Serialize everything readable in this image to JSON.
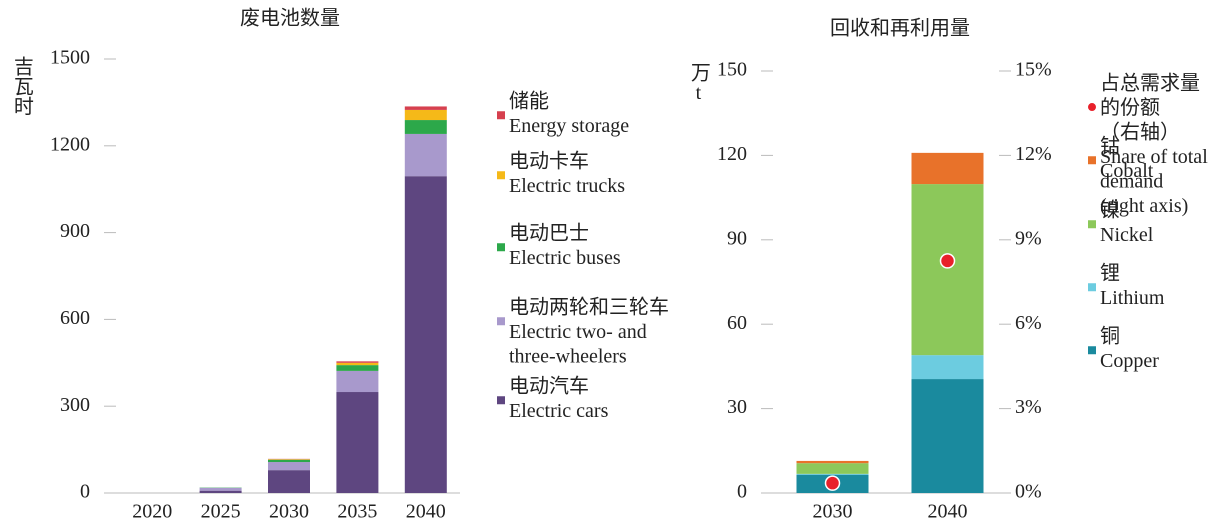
{
  "chart_data": [
    {
      "type": "bar",
      "title": "废电池数量",
      "ylabel": "吉瓦时",
      "categories": [
        "2020",
        "2025",
        "2030",
        "2035",
        "2040"
      ],
      "ylim": [
        0,
        1500
      ],
      "yticks": [
        0,
        300,
        600,
        900,
        1200,
        1500
      ],
      "series": [
        {
          "name": [
            "电动汽车",
            "Electric cars"
          ],
          "color": "#5e4680",
          "values": [
            0,
            8,
            79,
            349,
            1095
          ]
        },
        {
          "name": [
            "电动两轮和三轮车",
            "Electric two- and",
            "three-wheelers"
          ],
          "color": "#a899cc",
          "values": [
            0,
            10,
            28,
            73,
            146
          ]
        },
        {
          "name": [
            "电动巴士",
            "Electric buses"
          ],
          "color": "#2ca84a",
          "values": [
            0,
            1,
            8,
            20,
            48
          ]
        },
        {
          "name": [
            "电动卡车",
            "Electric trucks"
          ],
          "color": "#f5b918",
          "values": [
            0,
            0,
            2,
            8,
            35
          ]
        },
        {
          "name": [
            "储能",
            "Energy storage"
          ],
          "color": "#d6404e",
          "values": [
            0,
            0,
            1,
            5,
            12
          ]
        }
      ]
    },
    {
      "type": "bar",
      "title": "回收和再利用量",
      "ylabel": "万t",
      "categories": [
        "2030",
        "2040"
      ],
      "ylim": [
        0,
        150
      ],
      "yticks": [
        0,
        30,
        60,
        90,
        120,
        150
      ],
      "y2lim": [
        0,
        15
      ],
      "y2ticks": [
        {
          "value": 0,
          "label": "0%"
        },
        {
          "value": 3,
          "label": "3%"
        },
        {
          "value": 6,
          "label": "6%"
        },
        {
          "value": 9,
          "label": "9%"
        },
        {
          "value": 12,
          "label": "12%"
        },
        {
          "value": 15,
          "label": "15%"
        }
      ],
      "series": [
        {
          "name": [
            "铜",
            "Copper"
          ],
          "color": "#1a8a9e",
          "values": [
            6.5,
            40.5
          ]
        },
        {
          "name": [
            "锂",
            "Lithium"
          ],
          "color": "#6ccce0",
          "values": [
            0.3,
            8.5
          ]
        },
        {
          "name": [
            "镍",
            "Nickel"
          ],
          "color": "#8cc85a",
          "values": [
            3.8,
            60.8
          ]
        },
        {
          "name": [
            "钴",
            "Cobalt"
          ],
          "color": "#e8722a",
          "values": [
            0.8,
            11.1
          ]
        },
        {
          "name": [
            "占总需求量",
            "的份额",
            "（右轴）",
            "Share of total",
            "demand",
            "(right axis)"
          ],
          "color": "#e8202a",
          "axis": "y2",
          "values": [
            0.35,
            8.25
          ]
        }
      ]
    }
  ]
}
